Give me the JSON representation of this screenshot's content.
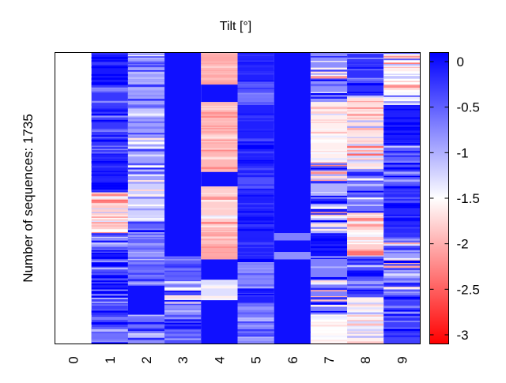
{
  "chart_data": {
    "type": "heatmap",
    "title": "Tilt [°]",
    "xlabel": "",
    "ylabel": "Number of sequences: 1735",
    "x_categories": [
      "0",
      "1",
      "2",
      "3",
      "4",
      "5",
      "6",
      "7",
      "8",
      "9"
    ],
    "colorbar": {
      "min": -3.1,
      "max": 0.1,
      "ticks": [
        "0",
        "-0.5",
        "-1",
        "-1.5",
        "-2",
        "-2.5",
        "-3"
      ],
      "tick_values": [
        0,
        -0.5,
        -1,
        -1.5,
        -2,
        -2.5,
        -3
      ],
      "colors": {
        "high": "#0000ff",
        "mid": "#ffffff",
        "low": "#ff0000"
      }
    },
    "columns": [
      {
        "category": "0",
        "blocks": [
          {
            "from": 0,
            "to": 1,
            "value": null
          }
        ]
      },
      {
        "category": "1",
        "blocks": [
          {
            "from": 0.0,
            "to": 0.12,
            "value": -0.05,
            "noise": 0.3
          },
          {
            "from": 0.12,
            "to": 0.35,
            "value": -0.25,
            "noise": 0.6
          },
          {
            "from": 0.35,
            "to": 0.48,
            "value": -0.1,
            "noise": 0.4
          },
          {
            "from": 0.48,
            "to": 0.62,
            "value": -1.8,
            "noise": 0.9
          },
          {
            "from": 0.62,
            "to": 0.8,
            "value": -0.4,
            "noise": 1.0
          },
          {
            "from": 0.8,
            "to": 1.0,
            "value": -0.3,
            "noise": 0.8
          }
        ]
      },
      {
        "category": "2",
        "blocks": [
          {
            "from": 0.0,
            "to": 0.45,
            "value": -0.9,
            "noise": 0.8
          },
          {
            "from": 0.45,
            "to": 0.58,
            "value": -1.2,
            "noise": 0.9
          },
          {
            "from": 0.58,
            "to": 0.8,
            "value": -0.5,
            "noise": 0.7
          },
          {
            "from": 0.8,
            "to": 0.9,
            "value": 0.0,
            "noise": 0.0
          },
          {
            "from": 0.9,
            "to": 1.0,
            "value": -0.6,
            "noise": 0.7
          }
        ]
      },
      {
        "category": "3",
        "blocks": [
          {
            "from": 0.0,
            "to": 0.7,
            "value": 0.0,
            "noise": 0.0
          },
          {
            "from": 0.7,
            "to": 0.78,
            "value": -0.5,
            "noise": 0.3
          },
          {
            "from": 0.78,
            "to": 0.9,
            "value": -0.8,
            "noise": 1.0
          },
          {
            "from": 0.9,
            "to": 1.0,
            "value": -0.4,
            "noise": 0.6
          }
        ]
      },
      {
        "category": "4",
        "blocks": [
          {
            "from": 0.0,
            "to": 0.11,
            "value": -2.05,
            "noise": 0.25
          },
          {
            "from": 0.11,
            "to": 0.17,
            "value": 0.0,
            "noise": 0.0
          },
          {
            "from": 0.17,
            "to": 0.41,
            "value": -1.95,
            "noise": 0.3
          },
          {
            "from": 0.41,
            "to": 0.46,
            "value": 0.0,
            "noise": 0.0
          },
          {
            "from": 0.46,
            "to": 0.6,
            "value": -1.8,
            "noise": 0.5
          },
          {
            "from": 0.6,
            "to": 0.71,
            "value": -2.05,
            "noise": 0.3
          },
          {
            "from": 0.71,
            "to": 0.78,
            "value": 0.0,
            "noise": 0.0
          },
          {
            "from": 0.78,
            "to": 0.85,
            "value": -1.3,
            "noise": 0.4
          },
          {
            "from": 0.85,
            "to": 1.0,
            "value": 0.0,
            "noise": 0.0
          }
        ]
      },
      {
        "category": "5",
        "blocks": [
          {
            "from": 0.0,
            "to": 0.1,
            "value": -0.1,
            "noise": 0.2
          },
          {
            "from": 0.1,
            "to": 0.18,
            "value": -0.45,
            "noise": 0.4
          },
          {
            "from": 0.18,
            "to": 0.42,
            "value": -0.1,
            "noise": 0.3
          },
          {
            "from": 0.42,
            "to": 0.48,
            "value": -0.4,
            "noise": 0.4
          },
          {
            "from": 0.48,
            "to": 0.72,
            "value": -0.1,
            "noise": 0.3
          },
          {
            "from": 0.72,
            "to": 0.81,
            "value": -0.75,
            "noise": 0.3
          },
          {
            "from": 0.81,
            "to": 0.86,
            "value": -0.1,
            "noise": 0.3
          },
          {
            "from": 0.86,
            "to": 1.0,
            "value": -0.65,
            "noise": 0.5
          }
        ]
      },
      {
        "category": "6",
        "blocks": [
          {
            "from": 0.0,
            "to": 0.62,
            "value": 0.0,
            "noise": 0.0
          },
          {
            "from": 0.62,
            "to": 0.645,
            "value": -0.7,
            "noise": 0.0
          },
          {
            "from": 0.645,
            "to": 0.685,
            "value": 0.0,
            "noise": 0.0
          },
          {
            "from": 0.685,
            "to": 0.71,
            "value": -0.8,
            "noise": 0.0
          },
          {
            "from": 0.71,
            "to": 1.0,
            "value": 0.0,
            "noise": 0.0
          }
        ]
      },
      {
        "category": "7",
        "blocks": [
          {
            "from": 0.0,
            "to": 0.17,
            "value": -0.8,
            "noise": 1.4
          },
          {
            "from": 0.17,
            "to": 0.38,
            "value": -1.6,
            "noise": 0.35
          },
          {
            "from": 0.38,
            "to": 0.62,
            "value": -1.0,
            "noise": 1.3
          },
          {
            "from": 0.62,
            "to": 0.7,
            "value": 0.0,
            "noise": 0.2
          },
          {
            "from": 0.7,
            "to": 0.9,
            "value": -0.7,
            "noise": 1.4
          },
          {
            "from": 0.9,
            "to": 1.0,
            "value": -1.5,
            "noise": 0.2
          }
        ]
      },
      {
        "category": "8",
        "blocks": [
          {
            "from": 0.0,
            "to": 0.15,
            "value": -0.2,
            "noise": 0.6
          },
          {
            "from": 0.15,
            "to": 0.4,
            "value": -1.7,
            "noise": 0.8
          },
          {
            "from": 0.4,
            "to": 0.55,
            "value": -0.6,
            "noise": 1.0
          },
          {
            "from": 0.55,
            "to": 0.7,
            "value": -1.8,
            "noise": 0.7
          },
          {
            "from": 0.7,
            "to": 0.84,
            "value": -0.4,
            "noise": 0.8
          },
          {
            "from": 0.84,
            "to": 1.0,
            "value": -1.6,
            "noise": 0.6
          }
        ]
      },
      {
        "category": "9",
        "blocks": [
          {
            "from": 0.0,
            "to": 0.18,
            "value": -1.5,
            "noise": 1.1
          },
          {
            "from": 0.18,
            "to": 0.32,
            "value": -0.1,
            "noise": 0.3
          },
          {
            "from": 0.32,
            "to": 0.48,
            "value": -0.5,
            "noise": 0.8
          },
          {
            "from": 0.48,
            "to": 0.64,
            "value": -0.15,
            "noise": 0.4
          },
          {
            "from": 0.64,
            "to": 0.82,
            "value": -0.9,
            "noise": 1.2
          },
          {
            "from": 0.82,
            "to": 1.0,
            "value": -0.3,
            "noise": 0.8
          }
        ]
      }
    ]
  }
}
